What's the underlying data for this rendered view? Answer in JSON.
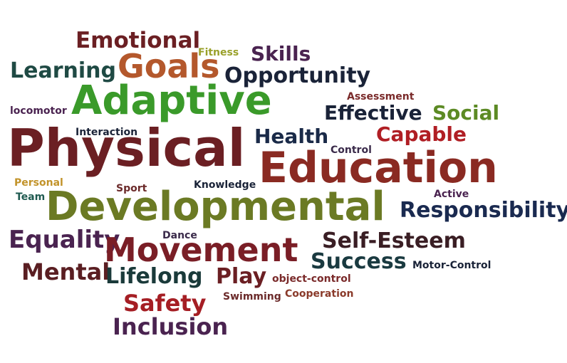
{
  "words": [
    {
      "text": "Emotional",
      "color": "#6b1f23"
    },
    {
      "text": "Fitness",
      "color": "#9aa12b"
    },
    {
      "text": "Skills",
      "color": "#4a2350"
    },
    {
      "text": "Goals",
      "color": "#b4582c"
    },
    {
      "text": "Learning",
      "color": "#1f4a44"
    },
    {
      "text": "Opportunity",
      "color": "#1a2338"
    },
    {
      "text": "Adaptive",
      "color": "#3a9a2a"
    },
    {
      "text": "Assessment",
      "color": "#7a2a2a"
    },
    {
      "text": "locomotor",
      "color": "#4a2350"
    },
    {
      "text": "Effective",
      "color": "#1a2338"
    },
    {
      "text": "Social",
      "color": "#5c8a24"
    },
    {
      "text": "Interaction",
      "color": "#1a2338"
    },
    {
      "text": "Capable",
      "color": "#b01e24"
    },
    {
      "text": "Health",
      "color": "#1a2a48"
    },
    {
      "text": "Physical",
      "color": "#6b1f23"
    },
    {
      "text": "Control",
      "color": "#3a2a4a"
    },
    {
      "text": "Education",
      "color": "#8a2a22"
    },
    {
      "text": "Personal",
      "color": "#c2932a"
    },
    {
      "text": "Sport",
      "color": "#6b2a2a"
    },
    {
      "text": "Knowledge",
      "color": "#1a2338"
    },
    {
      "text": "Team",
      "color": "#1f5a50"
    },
    {
      "text": "Active",
      "color": "#4a2350"
    },
    {
      "text": "Developmental",
      "color": "#6b7a24"
    },
    {
      "text": "Responsibility",
      "color": "#1a2a50"
    },
    {
      "text": "Dance",
      "color": "#3a2a4a"
    },
    {
      "text": "Equality",
      "color": "#4a2350"
    },
    {
      "text": "Self-Esteem",
      "color": "#3a1e24"
    },
    {
      "text": "Movement",
      "color": "#7a1e26"
    },
    {
      "text": "Success",
      "color": "#1a3a40"
    },
    {
      "text": "Motor-Control",
      "color": "#1a2338"
    },
    {
      "text": "Mental",
      "color": "#5a1e22"
    },
    {
      "text": "Lifelong",
      "color": "#1a3a3a"
    },
    {
      "text": "Play",
      "color": "#6b1f23"
    },
    {
      "text": "object-control",
      "color": "#7a2a2a"
    },
    {
      "text": "Swimming",
      "color": "#6b2a2a"
    },
    {
      "text": "Cooperation",
      "color": "#8a3a2a"
    },
    {
      "text": "Safety",
      "color": "#a51e24"
    },
    {
      "text": "Inclusion",
      "color": "#4a2350"
    }
  ]
}
